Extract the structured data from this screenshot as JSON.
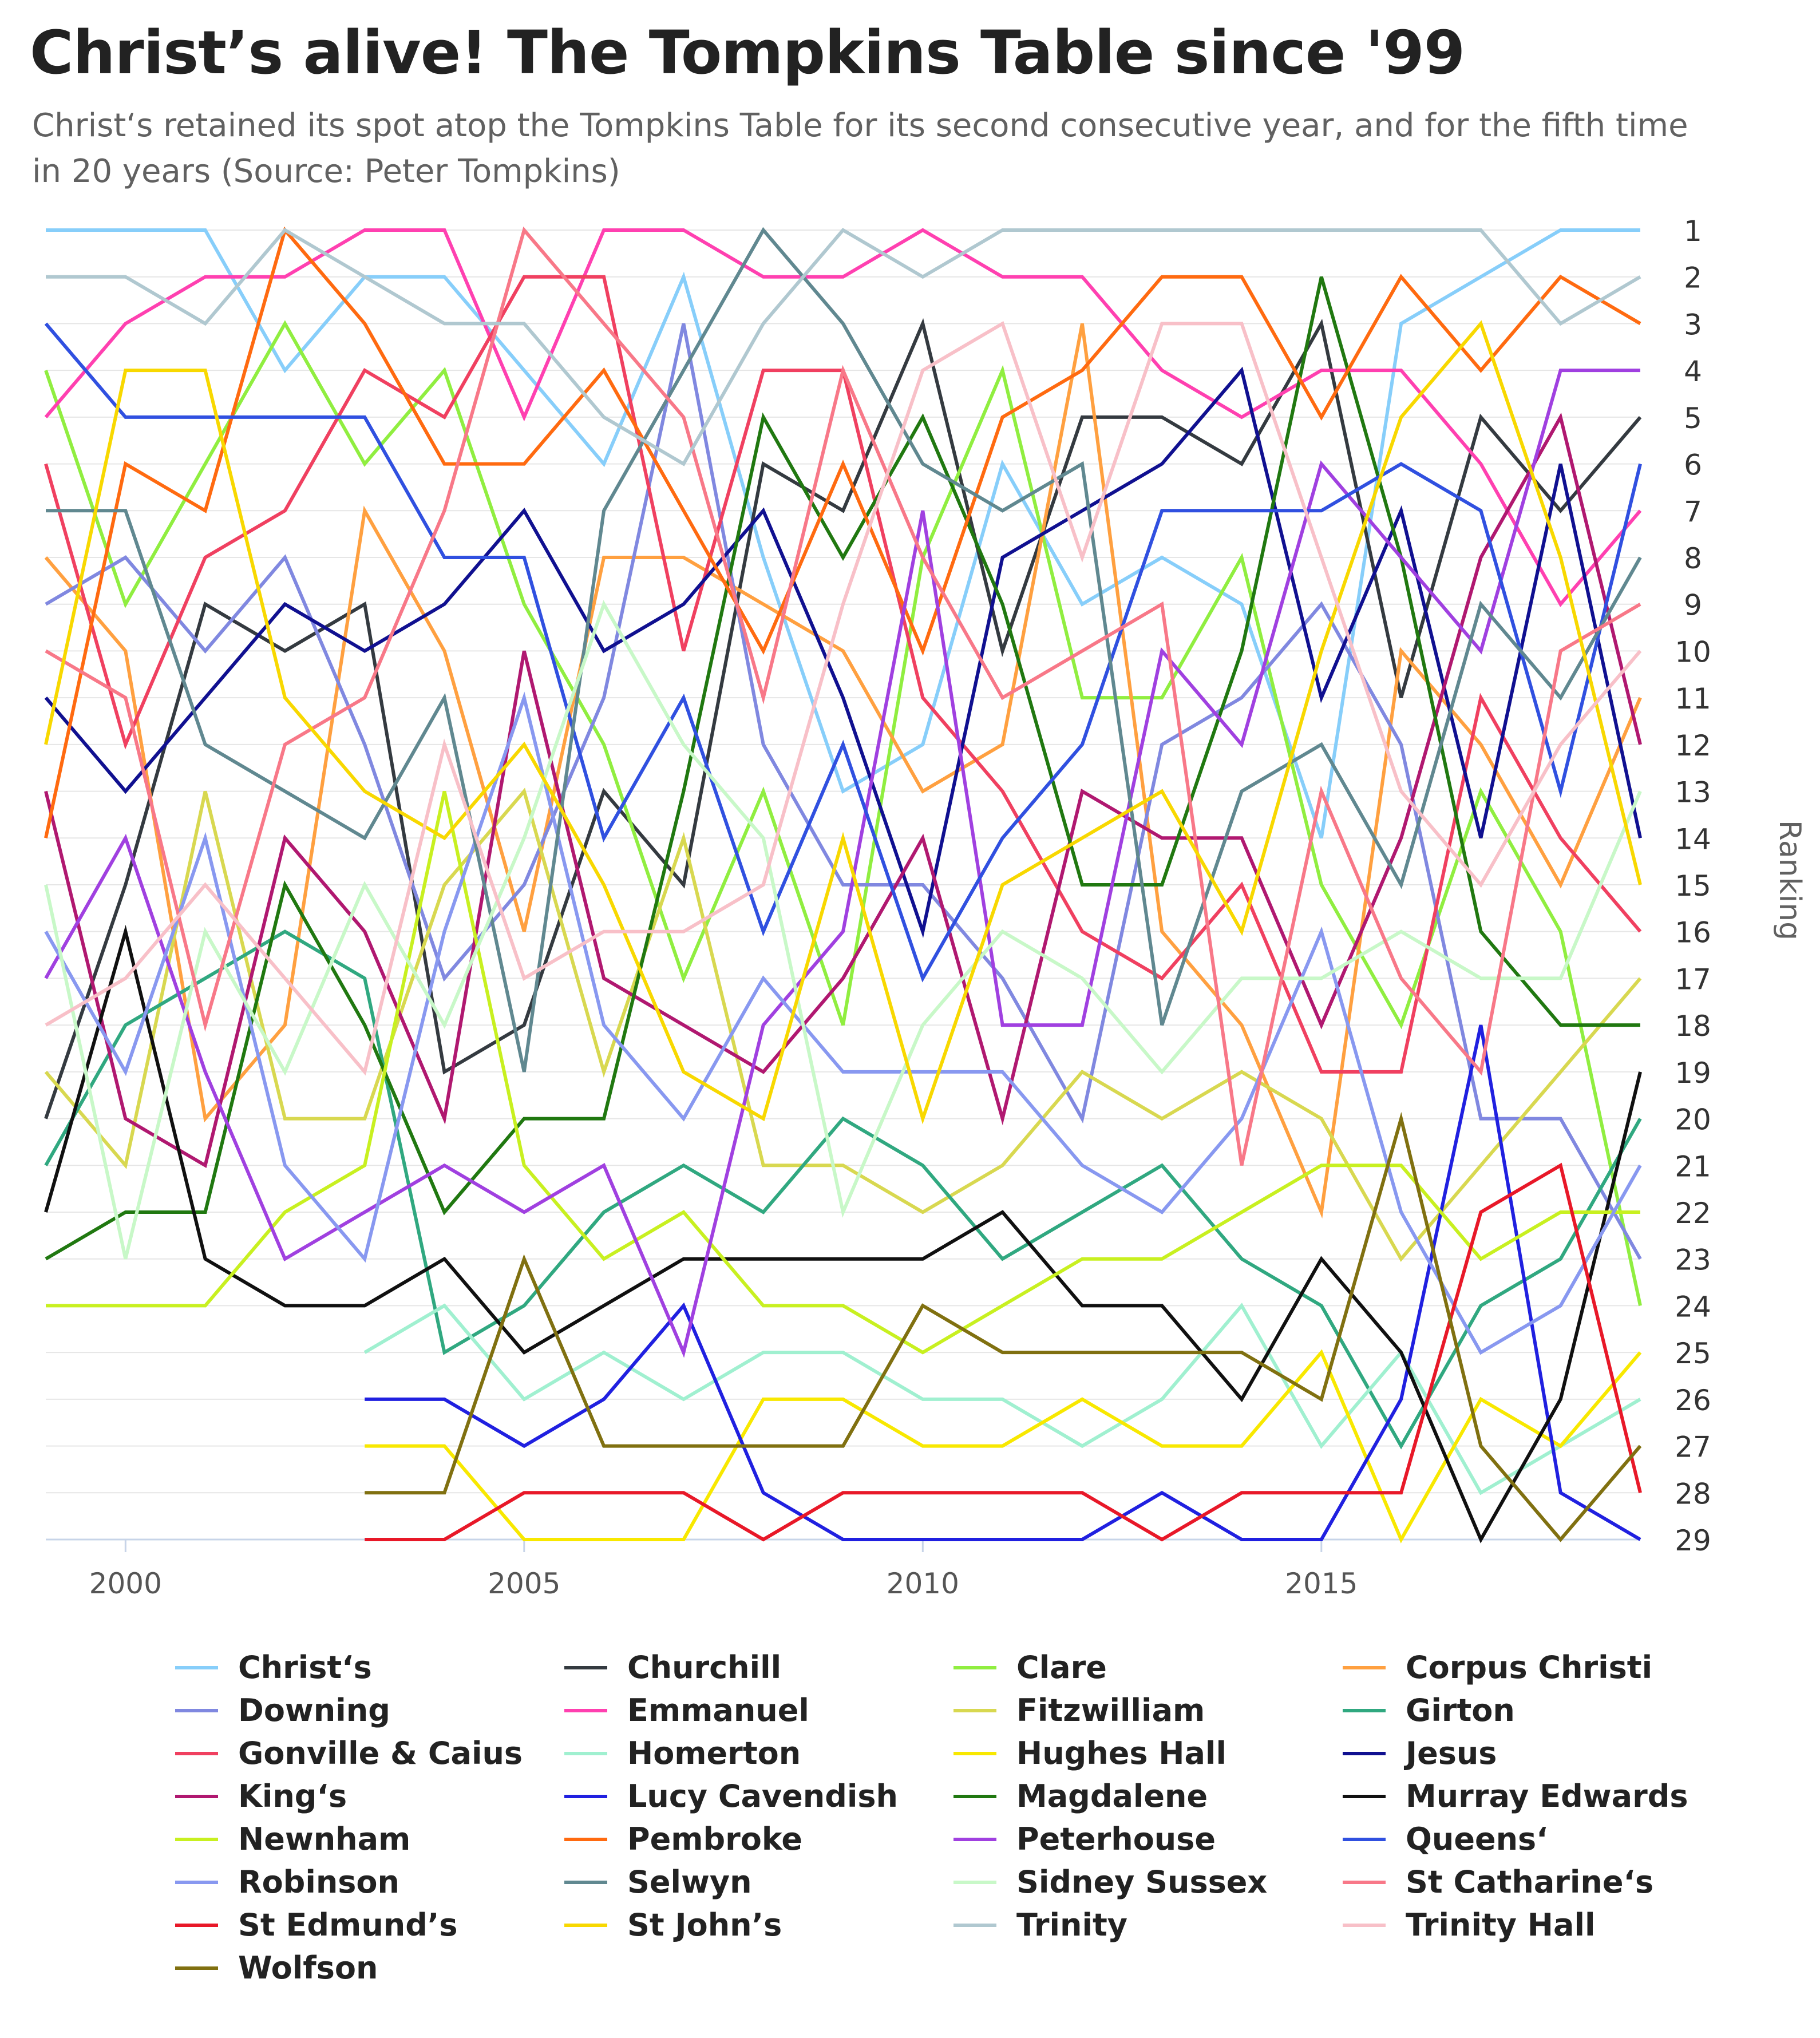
{
  "header": {
    "title": "Christ’s alive! The Tompkins Table since '99",
    "subtitle": "Christ‘s retained its spot atop the Tompkins Table for its second consecutive year, and for the fifth time in 20 years (Source: Peter Tompkins)"
  },
  "chart_data": {
    "type": "line",
    "title": "Christ’s alive! The Tompkins Table since '99",
    "xlabel": "",
    "ylabel": "Ranking",
    "xlim": [
      1999,
      2019
    ],
    "ylim": [
      1,
      29
    ],
    "y_reversed": true,
    "y_axis_side": "right",
    "x_ticks": [
      2000,
      2005,
      2010,
      2015
    ],
    "y_ticks": [
      1,
      2,
      3,
      4,
      5,
      6,
      7,
      8,
      9,
      10,
      11,
      12,
      13,
      14,
      15,
      16,
      17,
      18,
      19,
      20,
      21,
      22,
      23,
      24,
      25,
      26,
      27,
      28,
      29
    ],
    "grid": "horizontal",
    "legend_position": "bottom",
    "x": [
      1999,
      2000,
      2001,
      2002,
      2003,
      2004,
      2005,
      2006,
      2007,
      2008,
      2009,
      2010,
      2011,
      2012,
      2013,
      2014,
      2015,
      2016,
      2017,
      2018,
      2019
    ],
    "series": [
      {
        "name": "Christ‘s",
        "color": "#87CEFA",
        "values": [
          1,
          1,
          1,
          4,
          2,
          2,
          4,
          6,
          2,
          8,
          13,
          12,
          6,
          9,
          8,
          9,
          14,
          3,
          2,
          1,
          1
        ]
      },
      {
        "name": "Churchill",
        "color": "#343A40",
        "values": [
          20,
          15,
          9,
          10,
          9,
          19,
          18,
          13,
          15,
          6,
          7,
          3,
          10,
          5,
          5,
          6,
          3,
          11,
          5,
          7,
          5
        ]
      },
      {
        "name": "Clare",
        "color": "#90EE40",
        "values": [
          4,
          9,
          6,
          3,
          6,
          4,
          9,
          12,
          17,
          13,
          18,
          8,
          4,
          11,
          11,
          8,
          15,
          18,
          13,
          16,
          24
        ]
      },
      {
        "name": "Corpus Christi",
        "color": "#FFA040",
        "values": [
          8,
          10,
          20,
          18,
          7,
          10,
          16,
          8,
          8,
          9,
          10,
          13,
          12,
          3,
          16,
          18,
          22,
          10,
          12,
          15,
          11
        ]
      },
      {
        "name": "Downing",
        "color": "#8088E0",
        "values": [
          9,
          8,
          10,
          8,
          12,
          17,
          15,
          11,
          3,
          12,
          15,
          15,
          17,
          20,
          12,
          11,
          9,
          12,
          20,
          20,
          23
        ]
      },
      {
        "name": "Emmanuel",
        "color": "#FF40B0",
        "values": [
          5,
          3,
          2,
          2,
          1,
          1,
          5,
          1,
          1,
          2,
          2,
          1,
          2,
          2,
          4,
          5,
          4,
          4,
          6,
          9,
          7
        ]
      },
      {
        "name": "Fitzwilliam",
        "color": "#D8D850",
        "values": [
          19,
          21,
          13,
          20,
          20,
          15,
          13,
          19,
          14,
          21,
          21,
          22,
          21,
          19,
          20,
          19,
          20,
          23,
          21,
          19,
          17
        ]
      },
      {
        "name": "Girton",
        "color": "#30A880",
        "values": [
          21,
          18,
          17,
          16,
          17,
          25,
          24,
          22,
          21,
          22,
          20,
          21,
          23,
          22,
          21,
          23,
          24,
          27,
          24,
          23,
          20
        ]
      },
      {
        "name": "Gonville & Caius",
        "color": "#F04060",
        "values": [
          6,
          12,
          8,
          7,
          4,
          5,
          2,
          2,
          10,
          4,
          4,
          11,
          13,
          16,
          17,
          15,
          19,
          19,
          11,
          14,
          16
        ]
      },
      {
        "name": "Homerton",
        "color": "#A0F0D0",
        "values": [
          null,
          null,
          null,
          null,
          25,
          24,
          26,
          25,
          26,
          25,
          25,
          26,
          26,
          27,
          26,
          24,
          27,
          25,
          28,
          27,
          26
        ]
      },
      {
        "name": "Hughes Hall",
        "color": "#F8E800",
        "values": [
          null,
          null,
          null,
          null,
          27,
          27,
          29,
          29,
          29,
          26,
          26,
          27,
          27,
          26,
          27,
          27,
          25,
          29,
          26,
          27,
          25
        ]
      },
      {
        "name": "Jesus",
        "color": "#101090",
        "values": [
          11,
          13,
          11,
          9,
          10,
          9,
          7,
          10,
          9,
          7,
          11,
          16,
          8,
          7,
          6,
          4,
          11,
          7,
          14,
          6,
          14
        ]
      },
      {
        "name": "King‘s",
        "color": "#B01870",
        "values": [
          13,
          20,
          21,
          14,
          16,
          20,
          10,
          17,
          18,
          19,
          17,
          14,
          20,
          13,
          14,
          14,
          18,
          14,
          8,
          5,
          12
        ]
      },
      {
        "name": "Lucy Cavendish",
        "color": "#2020E0",
        "values": [
          null,
          null,
          null,
          null,
          26,
          26,
          27,
          26,
          24,
          28,
          29,
          29,
          29,
          29,
          28,
          29,
          29,
          26,
          18,
          28,
          29
        ]
      },
      {
        "name": "Magdalene",
        "color": "#207810",
        "values": [
          23,
          22,
          22,
          15,
          18,
          22,
          20,
          20,
          13,
          5,
          8,
          5,
          9,
          15,
          15,
          10,
          2,
          8,
          16,
          18,
          18
        ]
      },
      {
        "name": "Murray Edwards",
        "color": "#101010",
        "values": [
          22,
          16,
          23,
          24,
          24,
          23,
          25,
          24,
          23,
          23,
          23,
          23,
          22,
          24,
          24,
          26,
          23,
          25,
          29,
          26,
          19
        ]
      },
      {
        "name": "Newnham",
        "color": "#C8F020",
        "values": [
          24,
          24,
          24,
          22,
          21,
          13,
          21,
          23,
          22,
          24,
          24,
          25,
          24,
          23,
          23,
          22,
          21,
          21,
          23,
          22,
          22
        ]
      },
      {
        "name": "Pembroke",
        "color": "#FF6A10",
        "values": [
          14,
          6,
          7,
          1,
          3,
          6,
          6,
          4,
          7,
          10,
          6,
          10,
          5,
          4,
          2,
          2,
          5,
          2,
          4,
          2,
          3
        ]
      },
      {
        "name": "Peterhouse",
        "color": "#A040E0",
        "values": [
          17,
          14,
          19,
          23,
          22,
          21,
          22,
          21,
          25,
          18,
          16,
          7,
          18,
          18,
          10,
          12,
          6,
          8,
          10,
          4,
          4
        ]
      },
      {
        "name": "Queens‘",
        "color": "#3050E0",
        "values": [
          3,
          5,
          5,
          5,
          5,
          8,
          8,
          14,
          11,
          16,
          12,
          17,
          14,
          12,
          7,
          7,
          7,
          6,
          7,
          13,
          6
        ]
      },
      {
        "name": "Robinson",
        "color": "#8898F0",
        "values": [
          16,
          19,
          14,
          21,
          23,
          16,
          11,
          18,
          20,
          17,
          19,
          19,
          19,
          21,
          22,
          20,
          16,
          22,
          25,
          24,
          21
        ]
      },
      {
        "name": "Selwyn",
        "color": "#608890",
        "values": [
          7,
          7,
          12,
          13,
          14,
          11,
          19,
          7,
          4,
          1,
          3,
          6,
          7,
          6,
          18,
          13,
          12,
          15,
          9,
          11,
          8
        ]
      },
      {
        "name": "Sidney Sussex",
        "color": "#C8F8C8",
        "values": [
          15,
          23,
          16,
          19,
          15,
          18,
          14,
          9,
          12,
          14,
          22,
          18,
          16,
          17,
          19,
          17,
          17,
          16,
          17,
          17,
          13
        ]
      },
      {
        "name": "St Catharine‘s",
        "color": "#F87888",
        "values": [
          10,
          11,
          18,
          12,
          11,
          7,
          1,
          3,
          5,
          11,
          4,
          8,
          11,
          10,
          9,
          21,
          13,
          17,
          19,
          10,
          9
        ]
      },
      {
        "name": "St Edmund’s",
        "color": "#E81828",
        "values": [
          null,
          null,
          null,
          null,
          29,
          29,
          28,
          28,
          28,
          29,
          28,
          28,
          28,
          28,
          29,
          28,
          28,
          28,
          22,
          21,
          28
        ]
      },
      {
        "name": "St John’s",
        "color": "#F8D800",
        "values": [
          12,
          4,
          4,
          11,
          13,
          14,
          12,
          15,
          19,
          20,
          14,
          20,
          15,
          14,
          13,
          16,
          10,
          5,
          3,
          8,
          15
        ]
      },
      {
        "name": "Trinity",
        "color": "#B0C8D0",
        "values": [
          2,
          2,
          3,
          1,
          2,
          3,
          3,
          5,
          6,
          3,
          1,
          2,
          1,
          1,
          1,
          1,
          1,
          1,
          1,
          3,
          2
        ]
      },
      {
        "name": "Trinity Hall",
        "color": "#F8C0C8",
        "values": [
          18,
          17,
          15,
          17,
          19,
          12,
          17,
          16,
          16,
          15,
          9,
          4,
          3,
          8,
          3,
          3,
          8,
          13,
          15,
          12,
          10
        ]
      },
      {
        "name": "Wolfson",
        "color": "#807010",
        "values": [
          null,
          null,
          null,
          null,
          28,
          28,
          23,
          27,
          27,
          27,
          27,
          24,
          25,
          25,
          25,
          25,
          26,
          20,
          27,
          29,
          27
        ]
      }
    ]
  }
}
